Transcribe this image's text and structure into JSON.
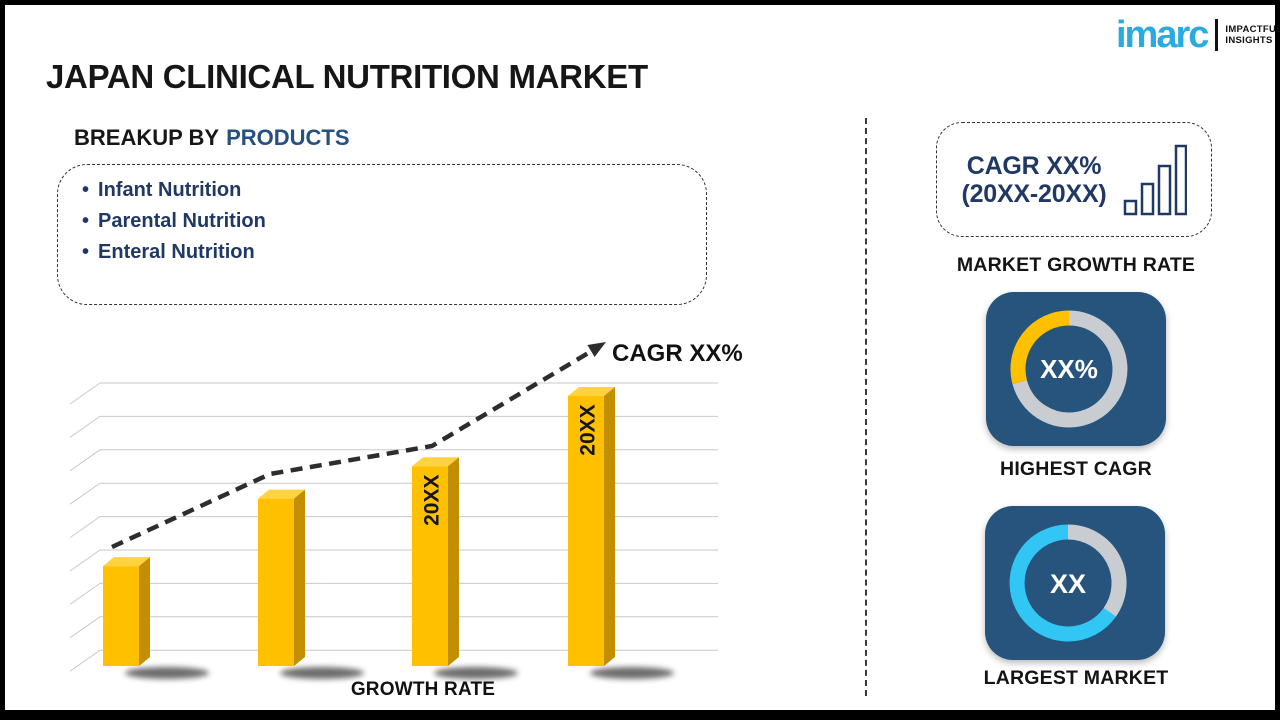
{
  "page": {
    "title": "JAPAN CLINICAL NUTRITION MARKET"
  },
  "logo": {
    "brand": "imarc",
    "tagline_line1": "IMPACTFUL",
    "tagline_line2": "INSIGHTS",
    "brand_color": "#29ABE2"
  },
  "breakup": {
    "heading_prefix": "BREAKUP BY",
    "heading_highlight": "PRODUCTS",
    "items": [
      "Infant Nutrition",
      "Parental Nutrition",
      "Enteral Nutrition"
    ]
  },
  "chart_data": {
    "type": "bar",
    "title": "",
    "categories": [
      "",
      "",
      "20XX",
      "20XX"
    ],
    "values": [
      37,
      62,
      74,
      100
    ],
    "values_note": "relative bar heights (no numeric axis shown; placeholder chart)",
    "bar_labels": [
      "",
      "",
      "20XX",
      "20XX"
    ],
    "trend": {
      "label": "CAGR XX%",
      "style": "dashed-arrow-up"
    },
    "xlabel": "GROWTH RATE",
    "ylabel": "",
    "grid": true,
    "legend": "none",
    "colors": {
      "bar_front": "#FFC000",
      "bar_top": "#FFD23F",
      "bar_side": "#C28F00",
      "trend_line": "#2d2d2d",
      "gridline": "#c9c9c9"
    }
  },
  "sidebar": {
    "growth_box": {
      "line1": "CAGR XX%",
      "line2": "(20XX-20XX)",
      "caption": "MARKET GROWTH RATE",
      "text_color": "#1F3864"
    },
    "highest_cagr": {
      "value": "XX%",
      "caption": "HIGHEST CAGR",
      "accent_color": "#FFC000",
      "ring_color": "#C9CDD2",
      "tile_color": "#26547C",
      "accent_arc_degrees": 105
    },
    "largest_market": {
      "value": "XX",
      "caption": "LARGEST MARKET",
      "accent_color": "#31C6F3",
      "ring_color": "#C9CDD2",
      "tile_color": "#26547C",
      "gray_arc_degrees": 120
    }
  }
}
